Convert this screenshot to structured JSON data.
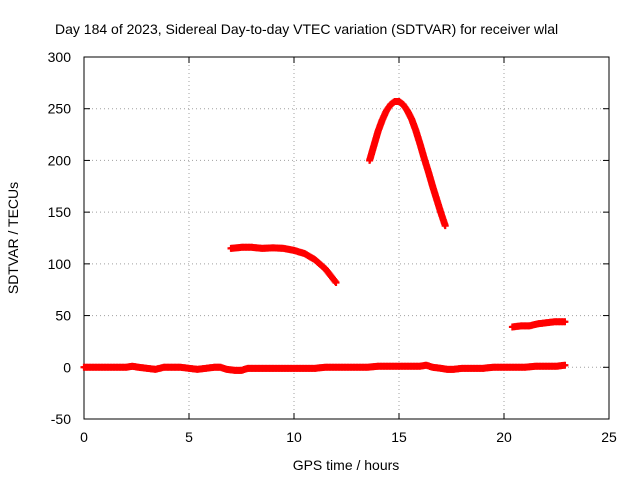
{
  "chart_data": {
    "type": "scatter",
    "title": "Day 184 of 2023, Sidereal Day-to-day VTEC variation (SDTVAR) for receiver wlal",
    "xlabel": "GPS time / hours",
    "ylabel": "SDTVAR / TECUs",
    "xlim": [
      0,
      25
    ],
    "ylim": [
      -50,
      300
    ],
    "xticks": [
      0,
      5,
      10,
      15,
      20,
      25
    ],
    "yticks": [
      -50,
      0,
      50,
      100,
      150,
      200,
      250,
      300
    ],
    "grid": true,
    "colors": {
      "series": "#ff0000",
      "grid": "#a0a0a0",
      "axes": "#000000"
    },
    "series": [
      {
        "points": [
          [
            0,
            0
          ],
          [
            0.5,
            0
          ],
          [
            1,
            0
          ],
          [
            1.5,
            0
          ],
          [
            2,
            0
          ],
          [
            2.3,
            1
          ],
          [
            2.6,
            0
          ],
          [
            3,
            -1
          ],
          [
            3.4,
            -2
          ],
          [
            3.8,
            0
          ],
          [
            4.2,
            0
          ],
          [
            4.6,
            0
          ],
          [
            5,
            -1
          ],
          [
            5.4,
            -2
          ],
          [
            5.8,
            -1
          ],
          [
            6.2,
            0
          ],
          [
            6.5,
            0
          ],
          [
            6.8,
            -2
          ],
          [
            7.2,
            -3
          ],
          [
            7.5,
            -3
          ],
          [
            7.8,
            -1
          ],
          [
            8.2,
            -1
          ],
          [
            8.6,
            -1
          ],
          [
            9,
            -1
          ],
          [
            9.5,
            -1
          ],
          [
            10,
            -1
          ],
          [
            10.5,
            -1
          ],
          [
            11,
            -1
          ],
          [
            11.5,
            0
          ],
          [
            12,
            0
          ],
          [
            12.5,
            0
          ],
          [
            13,
            0
          ],
          [
            13.5,
            0
          ],
          [
            14,
            1
          ],
          [
            14.5,
            1
          ],
          [
            15,
            1
          ],
          [
            15.5,
            1
          ],
          [
            16,
            1
          ],
          [
            16.3,
            2
          ],
          [
            16.6,
            0
          ],
          [
            17,
            -1
          ],
          [
            17.3,
            -2
          ],
          [
            17.6,
            -2
          ],
          [
            18,
            -1
          ],
          [
            18.5,
            -1
          ],
          [
            19,
            -1
          ],
          [
            19.5,
            0
          ],
          [
            20,
            0
          ],
          [
            20.5,
            0
          ],
          [
            21,
            0
          ],
          [
            21.5,
            1
          ],
          [
            22,
            1
          ],
          [
            22.5,
            1
          ],
          [
            22.9,
            2
          ]
        ]
      },
      {
        "points": [
          [
            7,
            115
          ],
          [
            7.5,
            116
          ],
          [
            8,
            116
          ],
          [
            8.5,
            115
          ],
          [
            9,
            115.5
          ],
          [
            9.5,
            115
          ],
          [
            10,
            113
          ],
          [
            10.5,
            110
          ],
          [
            11,
            104
          ],
          [
            11.5,
            95
          ],
          [
            12,
            82
          ]
        ]
      },
      {
        "points": [
          [
            13.6,
            200
          ],
          [
            13.8,
            214
          ],
          [
            14,
            228
          ],
          [
            14.2,
            239
          ],
          [
            14.4,
            248
          ],
          [
            14.6,
            254
          ],
          [
            14.8,
            257
          ],
          [
            15,
            257
          ],
          [
            15.2,
            254
          ],
          [
            15.4,
            248
          ],
          [
            15.6,
            240
          ],
          [
            15.8,
            229
          ],
          [
            16,
            216
          ],
          [
            16.2,
            202
          ],
          [
            16.4,
            189
          ],
          [
            16.6,
            175
          ],
          [
            16.8,
            162
          ],
          [
            17,
            149
          ],
          [
            17.2,
            137
          ]
        ]
      },
      {
        "points": [
          [
            20.4,
            39
          ],
          [
            20.8,
            40
          ],
          [
            21.2,
            40
          ],
          [
            21.6,
            42
          ],
          [
            22,
            43
          ],
          [
            22.4,
            44
          ],
          [
            22.9,
            44
          ]
        ]
      }
    ]
  }
}
